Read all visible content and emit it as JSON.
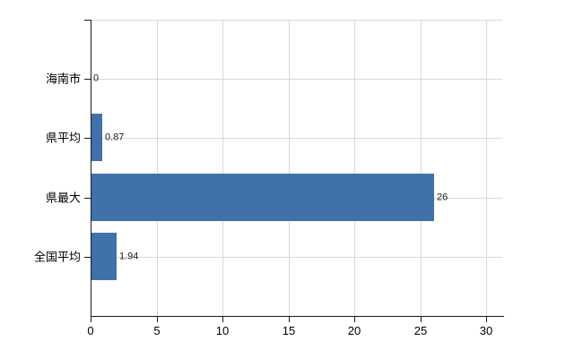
{
  "chart": {
    "background_color": "#ffffff",
    "bar_color": "#4071a8",
    "grid_color": "#d9d9d9",
    "axis_color": "#1a1a1a",
    "text_color": "#000000"
  },
  "chart_data": {
    "type": "bar",
    "orientation": "horizontal",
    "title": "",
    "xlabel": "",
    "ylabel": "",
    "categories": [
      "海南市",
      "県平均",
      "県最大",
      "全国平均"
    ],
    "values": [
      0,
      0.87,
      26,
      1.94
    ],
    "value_labels": [
      "0",
      "0.87",
      "26",
      "1.94"
    ],
    "x_tick_labels": [
      "0",
      "5",
      "10",
      "15",
      "20",
      "25",
      "30"
    ],
    "x_tick_values": [
      0,
      5,
      10,
      15,
      20,
      25,
      30
    ],
    "xlim": [
      0,
      31.2
    ],
    "grid": true,
    "legend": false
  }
}
